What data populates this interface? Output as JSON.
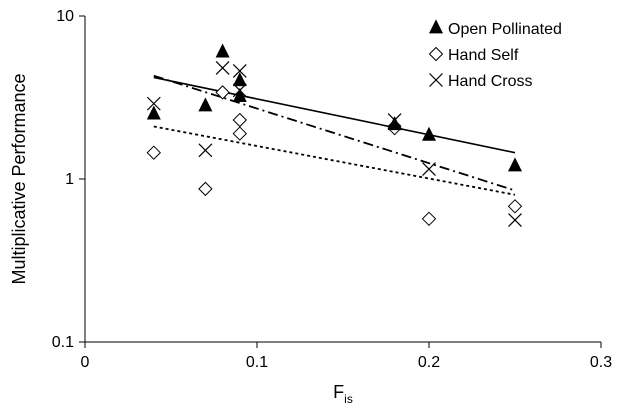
{
  "chart_data": {
    "type": "scatter",
    "title": "",
    "xlabel": "F",
    "xlabel_sub": "is",
    "ylabel": "Multiplicative Performance",
    "xlim": [
      0,
      0.3
    ],
    "ylim": [
      0.1,
      10
    ],
    "yscale": "log",
    "grid": false,
    "legend_position": "top-right",
    "x_ticks": [
      {
        "value": 0,
        "label": "0"
      },
      {
        "value": 0.1,
        "label": "0.1"
      },
      {
        "value": 0.2,
        "label": "0.2"
      },
      {
        "value": 0.3,
        "label": "0.3"
      }
    ],
    "y_ticks": [
      {
        "value": 0.1,
        "label": "0.1"
      },
      {
        "value": 1,
        "label": "1"
      },
      {
        "value": 10,
        "label": "10"
      }
    ],
    "series": [
      {
        "name": "Open Pollinated",
        "marker": "filled-triangle",
        "trendline": "solid",
        "x": [
          0.04,
          0.07,
          0.08,
          0.09,
          0.09,
          0.18,
          0.2,
          0.25
        ],
        "y": [
          2.5,
          2.8,
          6.0,
          4.0,
          3.2,
          2.15,
          1.85,
          1.2
        ],
        "trend": {
          "x": [
            0.04,
            0.25
          ],
          "y": [
            4.2,
            1.45
          ]
        }
      },
      {
        "name": "Hand Self",
        "marker": "open-diamond",
        "trendline": "dotted",
        "x": [
          0.04,
          0.07,
          0.08,
          0.09,
          0.09,
          0.18,
          0.2,
          0.25
        ],
        "y": [
          1.45,
          0.87,
          3.4,
          2.3,
          1.9,
          2.05,
          0.57,
          0.68
        ],
        "trend": {
          "x": [
            0.04,
            0.25
          ],
          "y": [
            2.1,
            0.8
          ]
        }
      },
      {
        "name": "Hand Cross",
        "marker": "x-cross",
        "trendline": "dash-dot",
        "x": [
          0.04,
          0.07,
          0.08,
          0.09,
          0.09,
          0.18,
          0.2,
          0.25
        ],
        "y": [
          2.9,
          1.5,
          4.8,
          4.6,
          3.5,
          2.3,
          1.15,
          0.56
        ],
        "trend": {
          "x": [
            0.04,
            0.25
          ],
          "y": [
            4.3,
            0.85
          ]
        }
      }
    ]
  }
}
